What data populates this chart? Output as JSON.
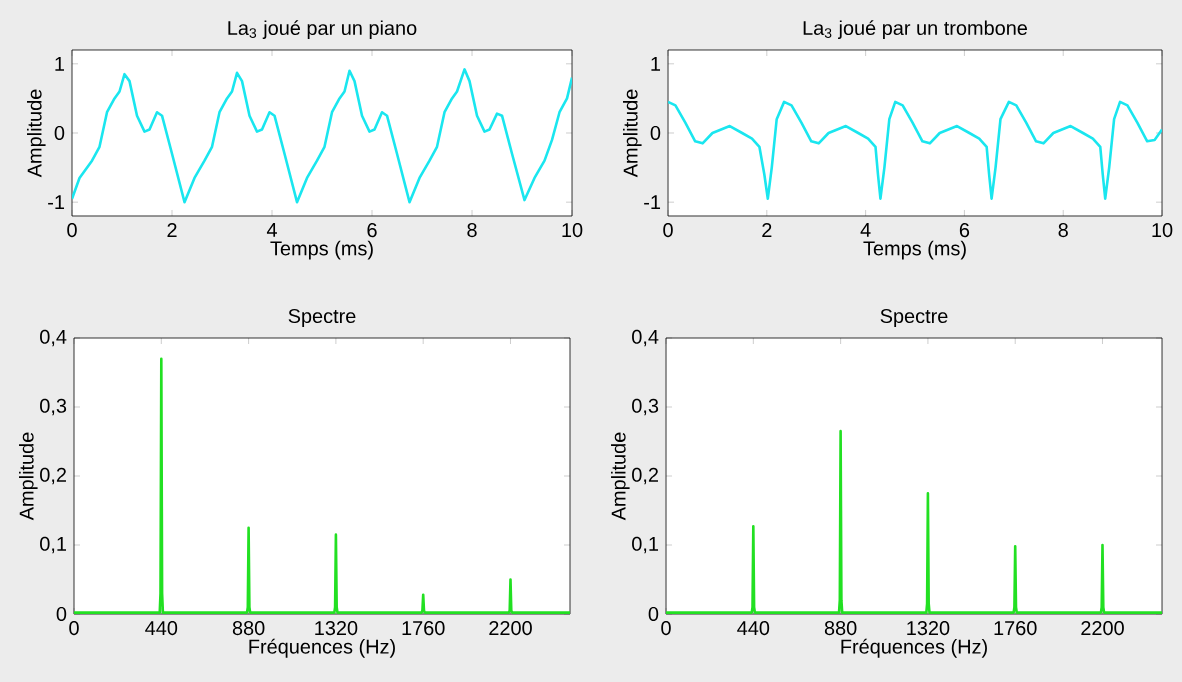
{
  "chart_data": [
    {
      "type": "line",
      "title": "La$_{3}$ joué par un piano",
      "xlabel": "Temps (ms)",
      "ylabel": "Amplitude",
      "x": [
        0,
        0.15,
        0.4,
        0.55,
        0.7,
        0.85,
        0.95,
        1.05,
        1.15,
        1.3,
        1.45,
        1.55,
        1.7,
        1.8,
        2.0,
        2.25,
        2.45,
        2.65,
        2.8,
        2.95,
        3.1,
        3.2,
        3.3,
        3.4,
        3.55,
        3.7,
        3.8,
        3.95,
        4.05,
        4.25,
        4.5,
        4.7,
        4.9,
        5.05,
        5.2,
        5.35,
        5.45,
        5.55,
        5.65,
        5.8,
        5.95,
        6.05,
        6.2,
        6.3,
        6.5,
        6.75,
        6.95,
        7.15,
        7.3,
        7.45,
        7.6,
        7.7,
        7.85,
        7.95,
        8.1,
        8.25,
        8.35,
        8.5,
        8.6,
        8.8,
        9.05,
        9.25,
        9.45,
        9.6,
        9.75,
        9.9,
        10
      ],
      "series": [
        {
          "color": "#1ae6ef",
          "values": [
            -0.95,
            -0.65,
            -0.4,
            -0.2,
            0.3,
            0.5,
            0.6,
            0.85,
            0.75,
            0.25,
            0.02,
            0.05,
            0.3,
            0.25,
            -0.3,
            -1.0,
            -0.65,
            -0.4,
            -0.2,
            0.3,
            0.5,
            0.6,
            0.87,
            0.75,
            0.25,
            0.02,
            0.05,
            0.3,
            0.25,
            -0.3,
            -1.0,
            -0.65,
            -0.4,
            -0.2,
            0.3,
            0.5,
            0.6,
            0.9,
            0.75,
            0.25,
            0.02,
            0.05,
            0.3,
            0.25,
            -0.3,
            -1.0,
            -0.65,
            -0.4,
            -0.2,
            0.3,
            0.5,
            0.6,
            0.92,
            0.75,
            0.25,
            0.02,
            0.05,
            0.28,
            0.25,
            -0.3,
            -0.97,
            -0.65,
            -0.4,
            -0.1,
            0.3,
            0.5,
            0.8
          ]
        }
      ],
      "xlim": [
        0,
        10
      ],
      "ylim": [
        -1.2,
        1.2
      ],
      "xticks": [
        0,
        2,
        4,
        6,
        8,
        10
      ],
      "yticks": [
        -1,
        0,
        1
      ]
    },
    {
      "type": "line",
      "title": "La$_{3}$ joué par un trombone",
      "xlabel": "Temps (ms)",
      "ylabel": "Amplitude",
      "x": [
        0,
        0.15,
        0.35,
        0.55,
        0.7,
        0.9,
        1.25,
        1.5,
        1.7,
        1.85,
        1.95,
        2.02,
        2.1,
        2.2,
        2.35,
        2.5,
        2.7,
        2.9,
        3.05,
        3.25,
        3.6,
        3.85,
        4.05,
        4.2,
        4.25,
        4.3,
        4.38,
        4.48,
        4.6,
        4.75,
        4.95,
        5.15,
        5.3,
        5.5,
        5.85,
        6.1,
        6.3,
        6.45,
        6.5,
        6.55,
        6.63,
        6.73,
        6.9,
        7.05,
        7.25,
        7.45,
        7.6,
        7.8,
        8.15,
        8.4,
        8.6,
        8.75,
        8.8,
        8.85,
        8.93,
        9.03,
        9.15,
        9.3,
        9.5,
        9.7,
        9.85,
        10
      ],
      "series": [
        {
          "color": "#1ae6ef",
          "values": [
            0.45,
            0.4,
            0.15,
            -0.12,
            -0.15,
            0,
            0.1,
            0,
            -0.08,
            -0.2,
            -0.6,
            -0.95,
            -0.5,
            0.2,
            0.45,
            0.4,
            0.15,
            -0.12,
            -0.15,
            0,
            0.1,
            0,
            -0.08,
            -0.2,
            -0.6,
            -0.95,
            -0.5,
            0.2,
            0.45,
            0.4,
            0.15,
            -0.12,
            -0.15,
            0,
            0.1,
            0,
            -0.08,
            -0.2,
            -0.6,
            -0.95,
            -0.5,
            0.2,
            0.45,
            0.4,
            0.15,
            -0.12,
            -0.15,
            0,
            0.1,
            0,
            -0.08,
            -0.2,
            -0.6,
            -0.95,
            -0.5,
            0.2,
            0.45,
            0.4,
            0.15,
            -0.12,
            -0.1,
            0.05
          ]
        }
      ],
      "xlim": [
        0,
        10
      ],
      "ylim": [
        -1.2,
        1.2
      ],
      "xticks": [
        0,
        2,
        4,
        6,
        8,
        10
      ],
      "yticks": [
        -1,
        0,
        1
      ]
    },
    {
      "type": "line",
      "title": "Spectre",
      "xlabel": "Fréquences (Hz)",
      "ylabel": "Amplitude",
      "x": [
        0,
        432,
        436,
        440,
        444,
        448,
        872,
        876,
        880,
        884,
        888,
        1312,
        1316,
        1320,
        1324,
        1328,
        1752,
        1756,
        1760,
        1764,
        1768,
        2192,
        2196,
        2200,
        2204,
        2208,
        2500
      ],
      "series": [
        {
          "color": "#22e022",
          "values": [
            0.002,
            0.002,
            0.03,
            0.37,
            0.03,
            0.002,
            0.002,
            0.01,
            0.125,
            0.01,
            0.002,
            0.002,
            0.01,
            0.115,
            0.01,
            0.002,
            0.002,
            0.005,
            0.028,
            0.005,
            0.002,
            0.002,
            0.005,
            0.05,
            0.005,
            0.002,
            0.002
          ]
        }
      ],
      "xlim": [
        0,
        2500
      ],
      "ylim": [
        0,
        0.4
      ],
      "xticks": [
        0,
        440,
        880,
        1320,
        1760,
        2200
      ],
      "yticks": [
        0,
        {
          "value": 0.1,
          "label": "0,1"
        },
        {
          "value": 0.2,
          "label": "0,2"
        },
        {
          "value": 0.3,
          "label": "0,3"
        },
        {
          "value": 0.4,
          "label": "0,4"
        }
      ]
    },
    {
      "type": "line",
      "title": "Spectre",
      "xlabel": "Fréquences (Hz)",
      "ylabel": "Amplitude",
      "x": [
        0,
        432,
        436,
        440,
        444,
        448,
        872,
        876,
        880,
        884,
        888,
        1312,
        1316,
        1320,
        1324,
        1328,
        1752,
        1756,
        1760,
        1764,
        1768,
        2192,
        2196,
        2200,
        2204,
        2208,
        2500
      ],
      "series": [
        {
          "color": "#22e022",
          "values": [
            0.002,
            0.002,
            0.01,
            0.127,
            0.01,
            0.002,
            0.002,
            0.02,
            0.265,
            0.02,
            0.002,
            0.002,
            0.015,
            0.175,
            0.015,
            0.002,
            0.002,
            0.01,
            0.098,
            0.01,
            0.002,
            0.002,
            0.01,
            0.1,
            0.01,
            0.002,
            0.002
          ]
        }
      ],
      "xlim": [
        0,
        2500
      ],
      "ylim": [
        0,
        0.4
      ],
      "xticks": [
        0,
        440,
        880,
        1320,
        1760,
        2200
      ],
      "yticks": [
        0,
        {
          "value": 0.1,
          "label": "0,1"
        },
        {
          "value": 0.2,
          "label": "0,2"
        },
        {
          "value": 0.3,
          "label": "0,3"
        },
        {
          "value": 0.4,
          "label": "0,4"
        }
      ]
    }
  ]
}
